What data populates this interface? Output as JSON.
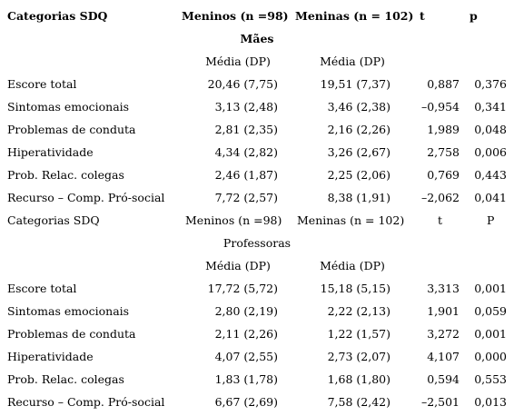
{
  "sections": [
    {
      "header": {
        "category": "Categorias SDQ",
        "boys": "Meninos (n =98)",
        "girls": "Meninas (n = 102)",
        "t": "t",
        "p": "p"
      },
      "group": "Mães",
      "boys_stat": "Média (DP)",
      "girls_stat": "Média (DP)",
      "rows": [
        [
          "Escore total",
          "20,46 (7,75)",
          "19,51 (7,37)",
          "0,887",
          "0,376"
        ],
        [
          "Sintomas emocionais",
          "3,13 (2,48)",
          "3,46 (2,38)",
          "–0,954",
          "0,341"
        ],
        [
          "Problemas de conduta",
          "2,81 (2,35)",
          "2,16 (2,26)",
          "1,989",
          "0,048"
        ],
        [
          "Hiperatividade",
          "4,34 (2,82)",
          "3,26 (2,67)",
          "2,758",
          "0,006"
        ],
        [
          "Prob. Relac. colegas",
          "2,46 (1,87)",
          "2,25 (2,06)",
          "0,769",
          "0,443"
        ],
        [
          "Recurso – Comp. Pró-social",
          "7,72 (2,57)",
          "8,38 (1,91)",
          "–2,062",
          "0,041"
        ]
      ]
    },
    {
      "header": {
        "category": "Categorias SDQ",
        "boys": "Meninos (n =98)",
        "girls": "Meninas (n = 102)",
        "t": "t",
        "p": "P"
      },
      "group": "Professoras",
      "boys_stat": "Média (DP)",
      "girls_stat": "Média (DP)",
      "rows": [
        [
          "Escore total",
          "17,72 (5,72)",
          "15,18 (5,15)",
          "3,313",
          "0,001"
        ],
        [
          "Sintomas emocionais",
          "2,80 (2,19)",
          "2,22 (2,13)",
          "1,901",
          "0,059"
        ],
        [
          "Problemas de conduta",
          "2,11 (2,26)",
          "1,22 (1,57)",
          "3,272",
          "0,001"
        ],
        [
          "Hiperatividade",
          "4,07 (2,55)",
          "2,73 (2,07)",
          "4,107",
          "0,000"
        ],
        [
          "Prob. Relac. colegas",
          "1,83 (1,78)",
          "1,68 (1,80)",
          "0,594",
          "0,553"
        ],
        [
          "Recurso – Comp. Pró-social",
          "6,67 (2,69)",
          "7,58 (2,42)",
          "–2,501",
          "0,013"
        ]
      ]
    }
  ]
}
